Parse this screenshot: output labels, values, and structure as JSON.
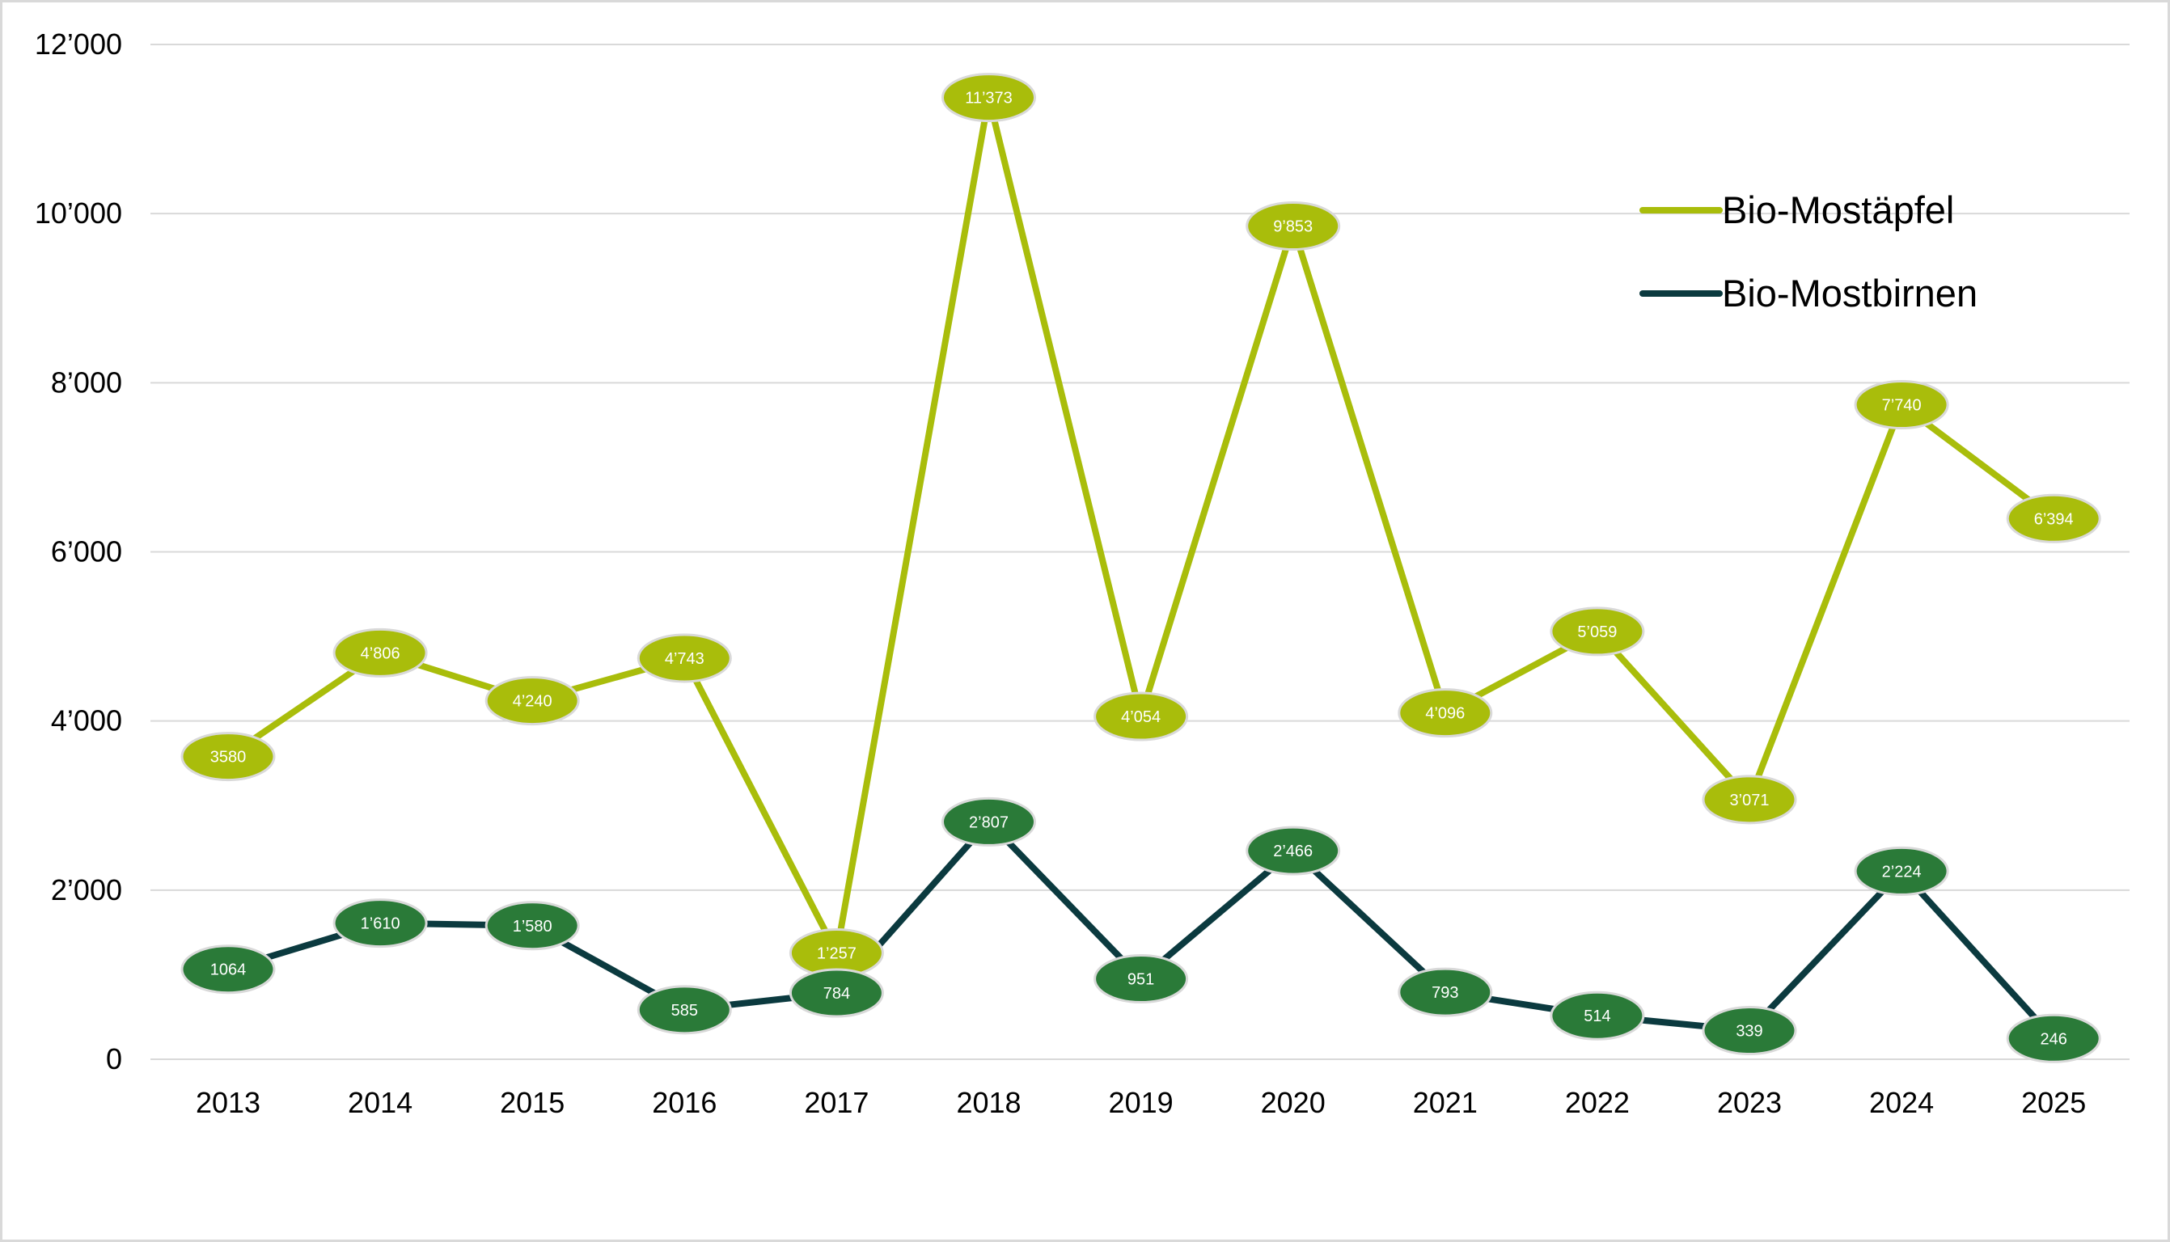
{
  "chart_data": {
    "type": "line",
    "categories": [
      "2013",
      "2014",
      "2015",
      "2016",
      "2017",
      "2018",
      "2019",
      "2020",
      "2021",
      "2022",
      "2023",
      "2024",
      "2025"
    ],
    "ylim": [
      0,
      12000
    ],
    "yticks": [
      0,
      2000,
      4000,
      6000,
      8000,
      10000,
      12000
    ],
    "ytick_labels": [
      "0",
      "2’000",
      "4’000",
      "6’000",
      "8’000",
      "10’000",
      "12’000"
    ],
    "grid": true,
    "legend_placement": "top-right",
    "series": [
      {
        "name": "Bio-Mostäpfel",
        "color": "#a9bd0b",
        "values": [
          3580,
          4806,
          4240,
          4743,
          1257,
          11373,
          4054,
          9853,
          4096,
          5059,
          3071,
          7740,
          6394
        ],
        "labels": [
          "3580",
          "4’806",
          "4’240",
          "4’743",
          "1’257",
          "11’373",
          "4’054",
          "9’853",
          "4’096",
          "5’059",
          "3’071",
          "7’740",
          "6’394"
        ]
      },
      {
        "name": "Bio-Mostbirnen",
        "color": "#0b3a3f",
        "marker_color": "#2a7a38",
        "values": [
          1064,
          1610,
          1580,
          585,
          784,
          2807,
          951,
          2466,
          793,
          514,
          339,
          2224,
          246
        ],
        "labels": [
          "1064",
          "1’610",
          "1’580",
          "585",
          "784",
          "2’807",
          "951",
          "2’466",
          "793",
          "514",
          "339",
          "2’224",
          "246"
        ]
      }
    ]
  }
}
